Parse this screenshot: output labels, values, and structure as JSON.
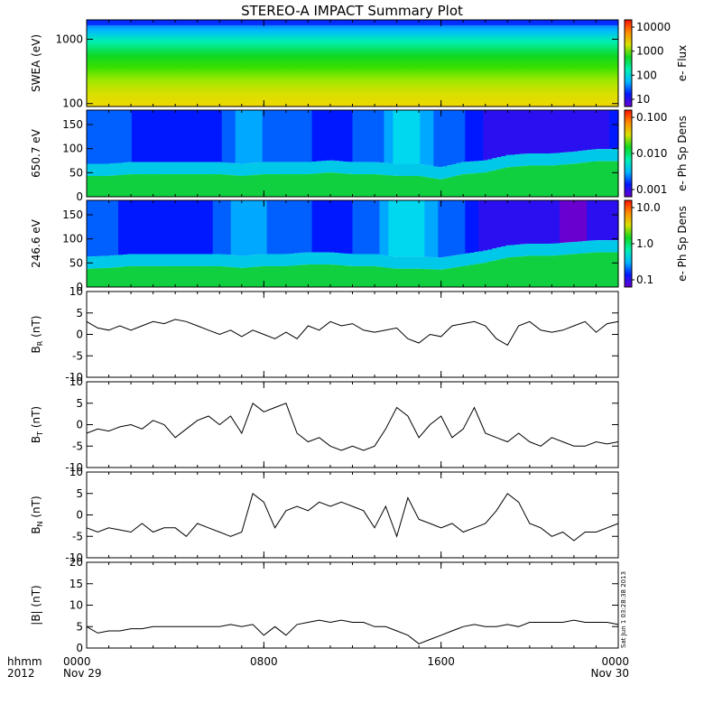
{
  "title": "STEREO-A IMPACT Summary Plot",
  "stamp": "Sat Jun 1 03:28:38 2013",
  "time_axis": {
    "row_label": "hhmm",
    "year_label": "2012",
    "ticks": [
      {
        "label": "0000",
        "hour": 0,
        "date": "Nov 29"
      },
      {
        "label": "0800",
        "hour": 8,
        "date": ""
      },
      {
        "label": "1600",
        "hour": 16,
        "date": ""
      },
      {
        "label": "0000",
        "hour": 24,
        "date": "Nov 30"
      }
    ],
    "range_hours": [
      0,
      24
    ]
  },
  "colors": {
    "spectrogram_scale": [
      "#6a00d0",
      "#0018ff",
      "#00b8ff",
      "#00f0b0",
      "#10d820",
      "#d8e000",
      "#ff8c00",
      "#ff1000"
    ],
    "line": "#000000"
  },
  "chart_data": [
    {
      "type": "heatmap",
      "ylabel": "SWEA (eV)",
      "yscale": "log",
      "ylim": [
        90,
        2000
      ],
      "yticks": [
        "100",
        "1000"
      ],
      "colorbar": {
        "label": "e- Flux",
        "scale": "log",
        "ticks": [
          "10",
          "100",
          "1000",
          "10000"
        ]
      },
      "bands": [
        {
          "name": "high energy",
          "level": 0.12
        },
        {
          "name": "mid energy",
          "level": 0.42
        },
        {
          "name": "low energy",
          "level": 0.7
        }
      ]
    },
    {
      "type": "heatmap",
      "ylabel": "650.7 eV",
      "ylim": [
        0,
        180
      ],
      "yticks": [
        "0",
        "50",
        "100",
        "150"
      ],
      "colorbar": {
        "label": "e- Ph Sp Dens",
        "scale": "log",
        "ticks": [
          "0.001",
          "0.010",
          "0.100"
        ]
      },
      "levels": {
        "hours": [
          0,
          1,
          2,
          3,
          4,
          5,
          6,
          7,
          8,
          9,
          10,
          11,
          12,
          13,
          14,
          15,
          16,
          17,
          18,
          19,
          20,
          21,
          22,
          23,
          24
        ],
        "pitch_mid": [
          0.32,
          0.3,
          0.28,
          0.18,
          0.2,
          0.22,
          0.25,
          0.45,
          0.38,
          0.35,
          0.3,
          0.2,
          0.28,
          0.3,
          0.55,
          0.5,
          0.32,
          0.3,
          0.15,
          0.12,
          0.1,
          0.12,
          0.1,
          0.15,
          0.18
        ],
        "low_pitch": [
          0.62,
          0.62,
          0.6,
          0.6,
          0.6,
          0.6,
          0.6,
          0.62,
          0.6,
          0.6,
          0.6,
          0.58,
          0.6,
          0.6,
          0.62,
          0.62,
          0.66,
          0.6,
          0.58,
          0.52,
          0.5,
          0.5,
          0.48,
          0.45,
          0.45
        ]
      }
    },
    {
      "type": "heatmap",
      "ylabel": "246.6 eV",
      "ylim": [
        0,
        180
      ],
      "yticks": [
        "0",
        "50",
        "100",
        "150"
      ],
      "colorbar": {
        "label": "e- Ph Sp Dens",
        "scale": "log",
        "ticks": [
          "0.1",
          "1.0",
          "10.0"
        ]
      },
      "levels": {
        "hours": [
          0,
          1,
          2,
          3,
          4,
          5,
          6,
          7,
          8,
          9,
          10,
          11,
          12,
          13,
          14,
          15,
          16,
          17,
          18,
          19,
          20,
          21,
          22,
          23,
          24
        ],
        "pitch_mid": [
          0.35,
          0.3,
          0.25,
          0.18,
          0.2,
          0.22,
          0.3,
          0.48,
          0.4,
          0.35,
          0.3,
          0.2,
          0.28,
          0.3,
          0.6,
          0.55,
          0.35,
          0.3,
          0.12,
          0.08,
          0.06,
          0.06,
          0.05,
          0.06,
          0.08
        ],
        "low_pitch": [
          0.65,
          0.64,
          0.62,
          0.62,
          0.62,
          0.62,
          0.62,
          0.64,
          0.62,
          0.62,
          0.6,
          0.6,
          0.62,
          0.62,
          0.65,
          0.65,
          0.66,
          0.62,
          0.58,
          0.52,
          0.5,
          0.5,
          0.48,
          0.46,
          0.46
        ]
      }
    },
    {
      "type": "line",
      "ylabel": "B",
      "ylabel_sub": "R",
      "ylabel_unit": "(nT)",
      "ylim": [
        -10,
        10
      ],
      "yticks": [
        "-10",
        "-5",
        "0",
        "5",
        "10"
      ],
      "x": [
        0,
        0.5,
        1,
        1.5,
        2,
        2.5,
        3,
        3.5,
        4,
        4.5,
        5,
        5.5,
        6,
        6.5,
        7,
        7.5,
        8,
        8.5,
        9,
        9.5,
        10,
        10.5,
        11,
        11.5,
        12,
        12.5,
        13,
        13.5,
        14,
        14.5,
        15,
        15.5,
        16,
        16.5,
        17,
        17.5,
        18,
        18.5,
        19,
        19.5,
        20,
        20.5,
        21,
        21.5,
        22,
        22.5,
        23,
        23.5,
        24
      ],
      "y": [
        3,
        1.5,
        1,
        2,
        1,
        2,
        3,
        2.5,
        3.5,
        3,
        2,
        1,
        0,
        1,
        -0.5,
        1,
        0,
        -1,
        0.5,
        -1,
        2,
        1,
        3,
        2,
        2.5,
        1,
        0.5,
        1,
        1.5,
        -1,
        -2,
        0,
        -0.5,
        2,
        2.5,
        3,
        2,
        -1,
        -2.5,
        2,
        3,
        1,
        0.5,
        1,
        2,
        3,
        0.5,
        2.5,
        3
      ]
    },
    {
      "type": "line",
      "ylabel": "B",
      "ylabel_sub": "T",
      "ylabel_unit": "(nT)",
      "ylim": [
        -10,
        10
      ],
      "yticks": [
        "-10",
        "-5",
        "0",
        "5",
        "10"
      ],
      "x": [
        0,
        0.5,
        1,
        1.5,
        2,
        2.5,
        3,
        3.5,
        4,
        4.5,
        5,
        5.5,
        6,
        6.5,
        7,
        7.5,
        8,
        8.5,
        9,
        9.5,
        10,
        10.5,
        11,
        11.5,
        12,
        12.5,
        13,
        13.5,
        14,
        14.5,
        15,
        15.5,
        16,
        16.5,
        17,
        17.5,
        18,
        18.5,
        19,
        19.5,
        20,
        20.5,
        21,
        21.5,
        22,
        22.5,
        23,
        23.5,
        24
      ],
      "y": [
        -2,
        -1,
        -1.5,
        -0.5,
        0,
        -1,
        1,
        0,
        -3,
        -1,
        1,
        2,
        0,
        2,
        -2,
        5,
        3,
        4,
        5,
        -2,
        -4,
        -3,
        -5,
        -6,
        -5,
        -6,
        -5,
        -1,
        4,
        2,
        -3,
        0,
        2,
        -3,
        -1,
        4,
        -2,
        -3,
        -4,
        -2,
        -4,
        -5,
        -3,
        -4,
        -5,
        -5,
        -4,
        -4.5,
        -4
      ]
    },
    {
      "type": "line",
      "ylabel": "B",
      "ylabel_sub": "N",
      "ylabel_unit": "(nT)",
      "ylim": [
        -10,
        10
      ],
      "yticks": [
        "-10",
        "-5",
        "0",
        "5",
        "10"
      ],
      "x": [
        0,
        0.5,
        1,
        1.5,
        2,
        2.5,
        3,
        3.5,
        4,
        4.5,
        5,
        5.5,
        6,
        6.5,
        7,
        7.5,
        8,
        8.5,
        9,
        9.5,
        10,
        10.5,
        11,
        11.5,
        12,
        12.5,
        13,
        13.5,
        14,
        14.5,
        15,
        15.5,
        16,
        16.5,
        17,
        17.5,
        18,
        18.5,
        19,
        19.5,
        20,
        20.5,
        21,
        21.5,
        22,
        22.5,
        23,
        23.5,
        24
      ],
      "y": [
        -3,
        -4,
        -3,
        -3.5,
        -4,
        -2,
        -4,
        -3,
        -3,
        -5,
        -2,
        -3,
        -4,
        -5,
        -4,
        5,
        3,
        -3,
        1,
        2,
        1,
        3,
        2,
        3,
        2,
        1,
        -3,
        2,
        -5,
        4,
        -1,
        -2,
        -3,
        -2,
        -4,
        -3,
        -2,
        1,
        5,
        3,
        -2,
        -3,
        -5,
        -4,
        -6,
        -4,
        -4,
        -3,
        -2
      ]
    },
    {
      "type": "line",
      "ylabel": "|B| (nT)",
      "ylim": [
        0,
        20
      ],
      "yticks": [
        "0",
        "5",
        "10",
        "15",
        "20"
      ],
      "x": [
        0,
        0.5,
        1,
        1.5,
        2,
        2.5,
        3,
        3.5,
        4,
        4.5,
        5,
        5.5,
        6,
        6.5,
        7,
        7.5,
        8,
        8.5,
        9,
        9.5,
        10,
        10.5,
        11,
        11.5,
        12,
        12.5,
        13,
        13.5,
        14,
        14.5,
        15,
        15.5,
        16,
        16.5,
        17,
        17.5,
        18,
        18.5,
        19,
        19.5,
        20,
        20.5,
        21,
        21.5,
        22,
        22.5,
        23,
        23.5,
        24
      ],
      "y": [
        5,
        3.5,
        4,
        4,
        4.5,
        4.5,
        5,
        5,
        5,
        5,
        5,
        5,
        5,
        5.5,
        5,
        5.5,
        3,
        5,
        3,
        5.5,
        6,
        6.5,
        6,
        6.5,
        6,
        6,
        5,
        5,
        4,
        3,
        1,
        2,
        3,
        4,
        5,
        5.5,
        5,
        5,
        5.5,
        5,
        6,
        6,
        6,
        6,
        6.5,
        6,
        6,
        6,
        5.5
      ]
    }
  ]
}
